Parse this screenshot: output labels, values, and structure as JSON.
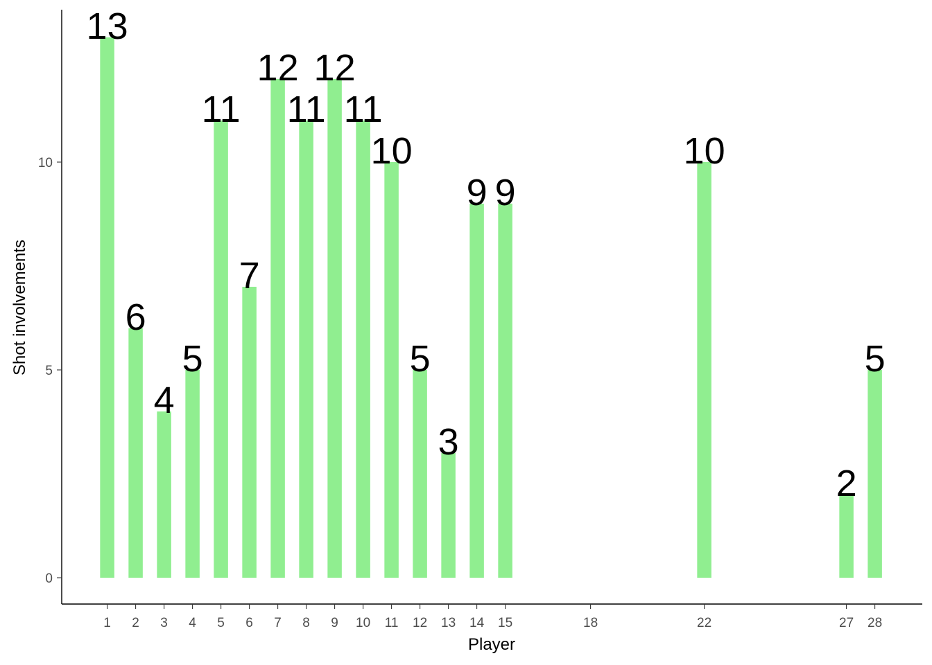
{
  "chart_data": {
    "type": "bar",
    "xlabel": "Player",
    "ylabel": "Shot involvements",
    "x": [
      1,
      2,
      3,
      4,
      5,
      6,
      7,
      8,
      9,
      10,
      11,
      12,
      13,
      14,
      15,
      22,
      27,
      28
    ],
    "values": [
      13,
      6,
      4,
      5,
      11,
      7,
      12,
      11,
      12,
      11,
      10,
      5,
      3,
      9,
      9,
      10,
      2,
      5
    ],
    "x_ticks": [
      1,
      2,
      3,
      4,
      5,
      6,
      7,
      8,
      9,
      10,
      11,
      12,
      13,
      14,
      15,
      18,
      22,
      27,
      28
    ],
    "y_ticks": [
      0,
      5,
      10
    ],
    "bar_color": "#90EE90",
    "grid": false
  }
}
